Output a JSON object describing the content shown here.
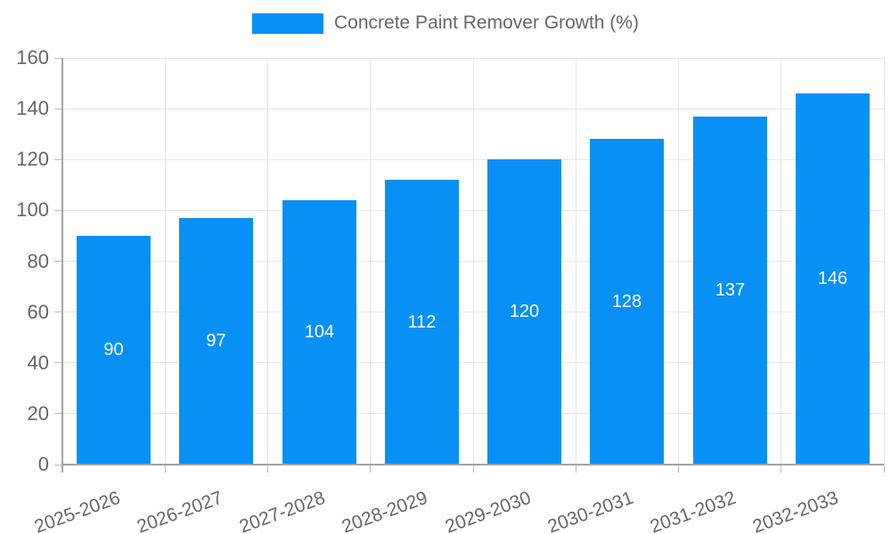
{
  "legend": {
    "label": "Concrete Paint Remover Growth (%)"
  },
  "chart_data": {
    "type": "bar",
    "title": "",
    "series_name": "Concrete Paint Remover Growth (%)",
    "categories": [
      "2025-2026",
      "2026-2027",
      "2027-2028",
      "2028-2029",
      "2029-2030",
      "2030-2031",
      "2031-2032",
      "2032-2033"
    ],
    "values": [
      90,
      97,
      104,
      112,
      120,
      128,
      137,
      146
    ],
    "value_labels": [
      "90",
      "97",
      "104",
      "112",
      "120",
      "128",
      "137",
      "146"
    ],
    "y_ticks": [
      0,
      20,
      40,
      60,
      80,
      100,
      120,
      140,
      160
    ],
    "ylim": [
      0,
      160
    ],
    "ytick_step": 20,
    "xlabel": "",
    "ylabel": "",
    "grid": "horizontal-and-vertical-band-boundaries",
    "legend_position": "top-center",
    "value_label_position": "center-of-bar",
    "colors": {
      "bar": "#0890f5",
      "value_label": "#ffffff",
      "grid": "#e6e6e6",
      "axis": "#a3a3a3",
      "tick_label": "#666666",
      "background": "#ffffff"
    }
  }
}
